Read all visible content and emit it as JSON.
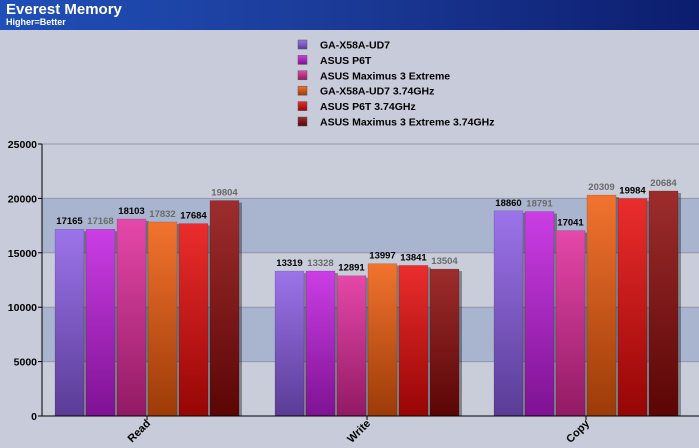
{
  "header": {
    "title": "Everest Memory",
    "subtitle": "Higher=Better"
  },
  "colors": {
    "header_start": "#1f4fb8",
    "header_end": "#0c1d6e",
    "background": "#c8cbd9",
    "band_dark": "#a9b4ce",
    "band_light": "#c9ccd9",
    "value_label_highlight": "#000000",
    "value_label_muted": "#6a6a6a"
  },
  "chart_data": {
    "type": "bar",
    "categories": [
      "Read",
      "Write",
      "Copy"
    ],
    "series": [
      {
        "name": "GA-X58A-UD7",
        "values": [
          17165,
          13319,
          18860
        ],
        "color": "#8a5ce6"
      },
      {
        "name": "ASUS P6T",
        "values": [
          17168,
          13328,
          18791
        ],
        "color": "#c21ce0"
      },
      {
        "name": "ASUS Maximus 3 Extreme",
        "values": [
          18103,
          12891,
          17041
        ],
        "color": "#e0289a"
      },
      {
        "name": "GA-X58A-UD7 3.74GHz",
        "values": [
          17832,
          13997,
          20309
        ],
        "color": "#f05a0a"
      },
      {
        "name": "ASUS P6T 3.74GHz",
        "values": [
          17684,
          13841,
          19984
        ],
        "color": "#e80808"
      },
      {
        "name": "ASUS Maximus 3 Extreme 3.74GHz",
        "values": [
          19804,
          13504,
          20684
        ],
        "color": "#8c0808"
      }
    ],
    "value_label_emphasis": [
      [
        true,
        false,
        true,
        false,
        true,
        false
      ],
      [
        true,
        false,
        true,
        true,
        true,
        false
      ],
      [
        true,
        false,
        true,
        false,
        true,
        false
      ]
    ],
    "ylim": [
      0,
      25000
    ],
    "yticks": [
      "0",
      "5000",
      "10000",
      "15000",
      "20000",
      "25000"
    ],
    "ytick_values": [
      0,
      5000,
      10000,
      15000,
      20000,
      25000
    ],
    "grid": true,
    "legend_position": "top-center",
    "xlabel": "",
    "ylabel": ""
  }
}
